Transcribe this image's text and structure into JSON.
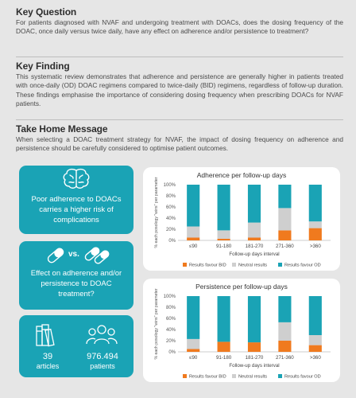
{
  "key_question": {
    "heading": "Key Question",
    "body": "For patients diagnosed with NVAF and undergoing treatment with DOACs, does the dosing frequency of the DOAC, once daily versus twice daily, have any effect on adherence and/or persistence to treatment?"
  },
  "key_finding": {
    "heading": "Key Finding",
    "body": "This systematic review demonstrates that adherence and persistence are generally higher in patients treated with once-daily (OD) DOAC regimens compared to twice-daily (BID) regimens, regardless of follow-up duration. These findings emphasise the importance of considering dosing frequency when prescribing DOACs for NVAF patients."
  },
  "take_home": {
    "heading": "Take Home Message",
    "body": "When selecting a DOAC treatment strategy for NVAF, the impact of dosing frequency on adherence and persistence should be carefully considered to optimise patient outcomes."
  },
  "cards": {
    "adherence_risk": {
      "icon": "brain-icon",
      "text": "Poor adherence to DOACs carries a higher risk of complications"
    },
    "effect": {
      "icon": "capsule-icon",
      "vs": "vs.",
      "text": "Effect on adherence and/or persistence to DOAC treatment?"
    },
    "stats": {
      "articles_icon": "books-icon",
      "patients_icon": "people-icon",
      "articles_value": "39",
      "articles_label": "articles",
      "patients_value": "976.494",
      "patients_label": "patients"
    }
  },
  "colors": {
    "bid": "#f07a1e",
    "neutral": "#cfcfcf",
    "od": "#1aa3b5",
    "accent": "#1aa3b5"
  },
  "chart_data": [
    {
      "type": "bar",
      "stacked": true,
      "title": "Adherence per follow-up days",
      "xlabel": "Follow-up days interval",
      "ylabel": "% each posology \"wins\" per parameter",
      "categories": [
        "≤90",
        "91-180",
        "181-270",
        "271-360",
        ">360"
      ],
      "ylim": [
        0,
        100
      ],
      "yticks": [
        "0%",
        "20%",
        "40%",
        "60%",
        "80%",
        "100%"
      ],
      "series": [
        {
          "name": "Results favour BID",
          "color": "#f07a1e",
          "values": [
            5,
            3,
            5,
            18,
            22
          ]
        },
        {
          "name": "Neutral results",
          "color": "#cfcfcf",
          "values": [
            20,
            15,
            27,
            40,
            12
          ]
        },
        {
          "name": "Results favour OD",
          "color": "#1aa3b5",
          "values": [
            75,
            82,
            68,
            42,
            66
          ]
        }
      ],
      "legend": "bottom"
    },
    {
      "type": "bar",
      "stacked": true,
      "title": "Persistence per follow-up days",
      "xlabel": "Follow-up days interval",
      "ylabel": "% each posology \"wins\" per parameter",
      "categories": [
        "≤90",
        "91-180",
        "181-270",
        "271-360",
        ">360"
      ],
      "ylim": [
        0,
        100
      ],
      "yticks": [
        "0%",
        "20%",
        "40%",
        "60%",
        "80%",
        "100%"
      ],
      "series": [
        {
          "name": "Results favour BID",
          "color": "#f07a1e",
          "values": [
            5,
            18,
            17,
            20,
            12
          ]
        },
        {
          "name": "Neutral results",
          "color": "#cfcfcf",
          "values": [
            18,
            0,
            0,
            33,
            18
          ]
        },
        {
          "name": "Results favour OD",
          "color": "#1aa3b5",
          "values": [
            77,
            82,
            83,
            47,
            70
          ]
        }
      ],
      "legend": "bottom"
    }
  ]
}
